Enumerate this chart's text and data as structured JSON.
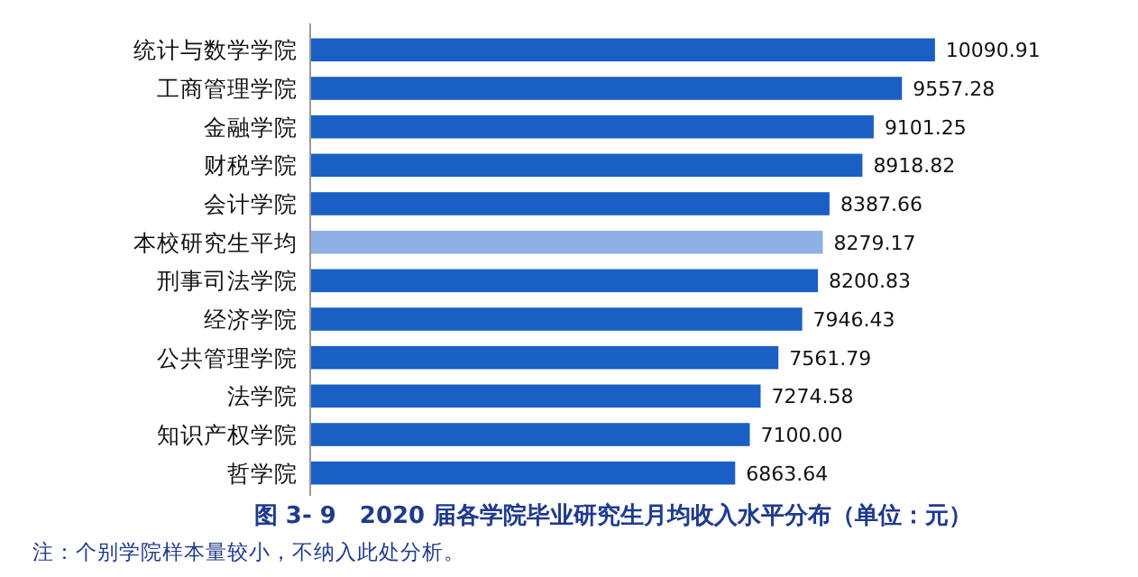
{
  "chart_data": {
    "type": "bar",
    "orientation": "horizontal",
    "title": "图 3- 9　2020 届各学院毕业研究生月均收入水平分布（单位：元）",
    "categories": [
      "统计与数学学院",
      "工商管理学院",
      "金融学院",
      "财税学院",
      "会计学院",
      "本校研究生平均",
      "刑事司法学院",
      "经济学院",
      "公共管理学院",
      "法学院",
      "知识产权学院",
      "哲学院"
    ],
    "values": [
      10090.91,
      9557.28,
      9101.25,
      8918.82,
      8387.66,
      8279.17,
      8200.83,
      7946.43,
      7561.79,
      7274.58,
      7100.0,
      6863.64
    ],
    "colors": [
      "#1a5fc4",
      "#1a5fc4",
      "#1a5fc4",
      "#1a5fc4",
      "#1a5fc4",
      "#8fb0e3",
      "#1a5fc4",
      "#1a5fc4",
      "#1a5fc4",
      "#1a5fc4",
      "#1a5fc4",
      "#1a5fc4"
    ],
    "value_labels": [
      "10090.91",
      "9557.28",
      "9101.25",
      "8918.82",
      "8387.66",
      "8279.17",
      "8200.83",
      "7946.43",
      "7561.79",
      "7274.58",
      "7100.00",
      "6863.64"
    ],
    "tick_labels": "y",
    "annotations": [
      "注：个别学院样本量较小，不纳入此处分析。"
    ]
  }
}
